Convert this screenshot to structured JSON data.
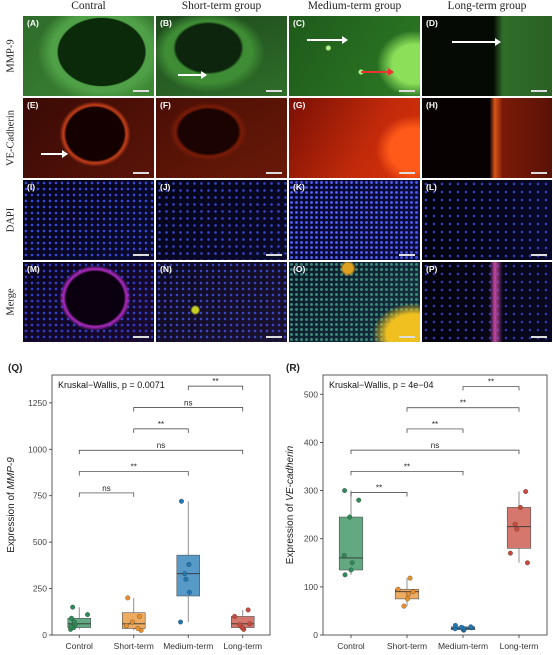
{
  "micro": {
    "columns": [
      "Contral",
      "Short-term group",
      "Medium-term group",
      "Long-term group"
    ],
    "rows": [
      "MMP-9",
      "VE-Cadherin",
      "DAPI",
      "Merge"
    ],
    "panel_labels": [
      "(A)",
      "(B)",
      "(C)",
      "(D)",
      "(E)",
      "(F)",
      "(G)",
      "(H)",
      "(I)",
      "(J)",
      "(K)",
      "(L)",
      "(M)",
      "(N)",
      "(O)",
      "(P)"
    ]
  },
  "charts": {
    "q": {
      "panel": "(Q)",
      "test": "Kruskal−Wallis, p = 0.0071",
      "ylabel_prefix": "Expression of ",
      "ylabel_italic": "MMP-9",
      "ticks": [
        "0",
        "250",
        "500",
        "750",
        "1000",
        "1250"
      ],
      "brackets": [
        {
          "label": "ns"
        },
        {
          "label": "**"
        },
        {
          "label": "ns"
        },
        {
          "label": "**"
        },
        {
          "label": "ns"
        },
        {
          "label": "**"
        }
      ]
    },
    "r": {
      "panel": "(R)",
      "test": "Kruskal−Wallis, p = 4e−04",
      "ylabel_prefix": "Expression of ",
      "ylabel_italic": "VE-cadherin",
      "ticks": [
        "0",
        "100",
        "200",
        "300",
        "400",
        "500"
      ],
      "brackets": [
        {
          "label": "**"
        },
        {
          "label": "**"
        },
        {
          "label": "ns"
        },
        {
          "label": "**"
        },
        {
          "label": "**"
        },
        {
          "label": "**"
        }
      ]
    }
  },
  "chart_data": [
    {
      "type": "box",
      "title": "Kruskal−Wallis, p = 0.0071",
      "xlabel": "",
      "ylabel": "Expression of MMP-9",
      "categories": [
        "Control",
        "Short-term",
        "Medium-term",
        "Long-term"
      ],
      "ylim": [
        0,
        1400
      ],
      "colors": [
        "#2e8b57",
        "#e8902f",
        "#1f78b4",
        "#c84a3c"
      ],
      "boxes": [
        {
          "min": 30,
          "q1": 40,
          "median": 60,
          "q3": 90,
          "max": 150
        },
        {
          "min": 25,
          "q1": 35,
          "median": 60,
          "q3": 120,
          "max": 200
        },
        {
          "min": 70,
          "q1": 210,
          "median": 330,
          "q3": 430,
          "max": 720
        },
        {
          "min": 30,
          "q1": 40,
          "median": 60,
          "q3": 100,
          "max": 135
        }
      ],
      "points": [
        [
          30,
          40,
          45,
          55,
          70,
          90,
          110,
          150
        ],
        [
          25,
          35,
          50,
          70,
          100,
          200
        ],
        [
          70,
          230,
          300,
          330,
          380,
          720
        ],
        [
          30,
          40,
          55,
          60,
          100,
          135
        ]
      ],
      "comparisons": [
        {
          "groups": [
            "Control",
            "Short-term"
          ],
          "label": "ns"
        },
        {
          "groups": [
            "Control",
            "Medium-term"
          ],
          "label": "**"
        },
        {
          "groups": [
            "Control",
            "Long-term"
          ],
          "label": "ns"
        },
        {
          "groups": [
            "Short-term",
            "Medium-term"
          ],
          "label": "**"
        },
        {
          "groups": [
            "Short-term",
            "Long-term"
          ],
          "label": "ns"
        },
        {
          "groups": [
            "Medium-term",
            "Long-term"
          ],
          "label": "**"
        }
      ]
    },
    {
      "type": "box",
      "title": "Kruskal−Wallis, p = 4e−04",
      "xlabel": "",
      "ylabel": "Expression of VE-cadherin",
      "categories": [
        "Control",
        "Short-term",
        "Medium-term",
        "Long-term"
      ],
      "ylim": [
        0,
        540
      ],
      "colors": [
        "#2e8b57",
        "#e8902f",
        "#1f78b4",
        "#c84a3c"
      ],
      "boxes": [
        {
          "min": 125,
          "q1": 135,
          "median": 160,
          "q3": 245,
          "max": 300
        },
        {
          "min": 60,
          "q1": 75,
          "median": 90,
          "q3": 95,
          "max": 118
        },
        {
          "min": 10,
          "q1": 11,
          "median": 14,
          "q3": 17,
          "max": 20
        },
        {
          "min": 150,
          "q1": 180,
          "median": 225,
          "q3": 265,
          "max": 298
        }
      ],
      "points": [
        [
          125,
          135,
          150,
          165,
          245,
          280,
          300
        ],
        [
          60,
          75,
          85,
          90,
          95,
          118
        ],
        [
          10,
          11,
          12,
          13,
          14,
          15,
          16,
          17,
          20
        ],
        [
          150,
          170,
          220,
          230,
          265,
          298
        ]
      ],
      "comparisons": [
        {
          "groups": [
            "Control",
            "Short-term"
          ],
          "label": "**"
        },
        {
          "groups": [
            "Control",
            "Medium-term"
          ],
          "label": "**"
        },
        {
          "groups": [
            "Control",
            "Long-term"
          ],
          "label": "ns"
        },
        {
          "groups": [
            "Short-term",
            "Medium-term"
          ],
          "label": "**"
        },
        {
          "groups": [
            "Short-term",
            "Long-term"
          ],
          "label": "**"
        },
        {
          "groups": [
            "Medium-term",
            "Long-term"
          ],
          "label": "**"
        }
      ]
    }
  ]
}
